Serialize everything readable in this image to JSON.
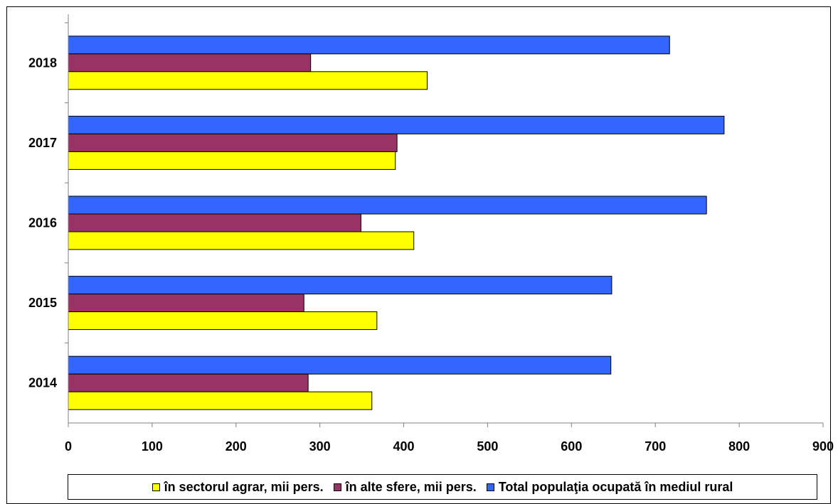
{
  "chart_data": {
    "type": "bar",
    "orientation": "horizontal",
    "categories": [
      "2014",
      "2015",
      "2016",
      "2017",
      "2018"
    ],
    "series": [
      {
        "name": "în sectorul agrar, mii pers.",
        "values": [
          362,
          368,
          412,
          390,
          428
        ],
        "color": "#ffff00"
      },
      {
        "name": "în alte sfere, mii pers.",
        "values": [
          286,
          281,
          349,
          392,
          289
        ],
        "color": "#993366"
      },
      {
        "name": "Total populaţia ocupată în mediul rural",
        "values": [
          647,
          648,
          761,
          782,
          717
        ],
        "color": "#3366ff"
      }
    ],
    "xticks": [
      "0",
      "100",
      "200",
      "300",
      "400",
      "500",
      "600",
      "700",
      "800",
      "900"
    ],
    "xlim": [
      0,
      900
    ],
    "title": "",
    "xlabel": "",
    "ylabel": "",
    "grid": false,
    "legend_position": "bottom"
  }
}
